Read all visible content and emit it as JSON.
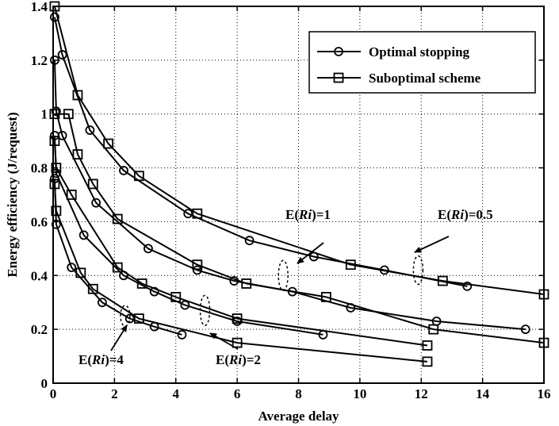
{
  "chart_data": {
    "type": "line",
    "xlabel": "Average delay",
    "ylabel": "Energy efficiency (J/request)",
    "xlim": [
      0,
      16
    ],
    "ylim": [
      0,
      1.4
    ],
    "xticks": [
      0,
      2,
      4,
      6,
      8,
      10,
      12,
      14,
      16
    ],
    "yticks": [
      0,
      0.2,
      0.4,
      0.6,
      0.8,
      1,
      1.2,
      1.4
    ],
    "xtick_labels": [
      "0",
      "2",
      "4",
      "6",
      "8",
      "10",
      "12",
      "14",
      "16"
    ],
    "ytick_labels": [
      "0",
      "0.2",
      "0.4",
      "0.6",
      "0.8",
      "1",
      "1.2",
      "1.4"
    ],
    "grid": "dotted",
    "legend_position": "top-right",
    "legend": [
      {
        "name": "Optimal stopping",
        "marker": "circle"
      },
      {
        "name": "Suboptimal scheme",
        "marker": "square"
      }
    ],
    "series": [
      {
        "group": "E(Ri)=0.5",
        "marker": "circle",
        "name": "Optimal stopping",
        "x": [
          0.05,
          0.3,
          1.2,
          2.3,
          4.4,
          6.4,
          8.5,
          10.8,
          13.5
        ],
        "y": [
          1.36,
          1.22,
          0.94,
          0.79,
          0.63,
          0.53,
          0.47,
          0.42,
          0.36
        ]
      },
      {
        "group": "E(Ri)=0.5",
        "marker": "square",
        "name": "Suboptimal scheme",
        "x": [
          0.05,
          0.8,
          1.8,
          2.8,
          4.7,
          9.7,
          12.7,
          16
        ],
        "y": [
          1.4,
          1.07,
          0.89,
          0.77,
          0.63,
          0.44,
          0.38,
          0.33
        ]
      },
      {
        "group": "E(Ri)=1",
        "marker": "circle",
        "name": "Optimal stopping",
        "x": [
          0.05,
          0.1,
          0.3,
          1.4,
          3.1,
          4.7,
          5.9,
          7.8,
          9.7,
          12.5,
          15.4
        ],
        "y": [
          1.2,
          1.01,
          0.92,
          0.67,
          0.5,
          0.42,
          0.38,
          0.34,
          0.28,
          0.23,
          0.2
        ]
      },
      {
        "group": "E(Ri)=1",
        "marker": "square",
        "name": "Suboptimal scheme",
        "x": [
          0.05,
          0.5,
          0.8,
          1.3,
          2.1,
          4.7,
          6.3,
          8.9,
          12.4,
          16
        ],
        "y": [
          1.0,
          1.0,
          0.85,
          0.74,
          0.61,
          0.44,
          0.37,
          0.32,
          0.2,
          0.15
        ]
      },
      {
        "group": "E(Ri)=2",
        "marker": "circle",
        "name": "Optimal stopping",
        "x": [
          0.05,
          0.1,
          1.0,
          2.3,
          3.3,
          4.3,
          6.0,
          8.8
        ],
        "y": [
          0.92,
          0.78,
          0.55,
          0.4,
          0.34,
          0.29,
          0.23,
          0.18
        ]
      },
      {
        "group": "E(Ri)=2",
        "marker": "square",
        "name": "Suboptimal scheme",
        "x": [
          0.05,
          0.1,
          0.6,
          2.1,
          2.9,
          4.0,
          6.0,
          12.2
        ],
        "y": [
          0.9,
          0.8,
          0.7,
          0.43,
          0.37,
          0.32,
          0.24,
          0.14
        ]
      },
      {
        "group": "E(Ri)=4",
        "marker": "circle",
        "name": "Optimal stopping",
        "x": [
          0.05,
          0.1,
          0.6,
          1.6,
          2.5,
          3.3,
          4.2
        ],
        "y": [
          0.76,
          0.59,
          0.43,
          0.3,
          0.24,
          0.21,
          0.18
        ]
      },
      {
        "group": "E(Ri)=4",
        "marker": "square",
        "name": "Suboptimal scheme",
        "x": [
          0.05,
          0.1,
          0.9,
          1.3,
          2.8,
          6.0,
          12.2
        ],
        "y": [
          0.74,
          0.64,
          0.41,
          0.35,
          0.24,
          0.15,
          0.08
        ]
      }
    ],
    "annotations": [
      {
        "prefix": "E(",
        "italic": "Ri",
        "suffix": ")=1",
        "near_x": 7.5,
        "near_y": 0.4
      },
      {
        "prefix": "E(",
        "italic": "Ri",
        "suffix": ")=0.5",
        "near_x": 11.9,
        "near_y": 0.42
      },
      {
        "prefix": "E(",
        "italic": "Ri",
        "suffix": ")=4",
        "near_x": 2.3,
        "near_y": 0.25
      },
      {
        "prefix": "E(",
        "italic": "Ri",
        "suffix": ")=2",
        "near_x": 4.9,
        "near_y": 0.27
      }
    ]
  }
}
